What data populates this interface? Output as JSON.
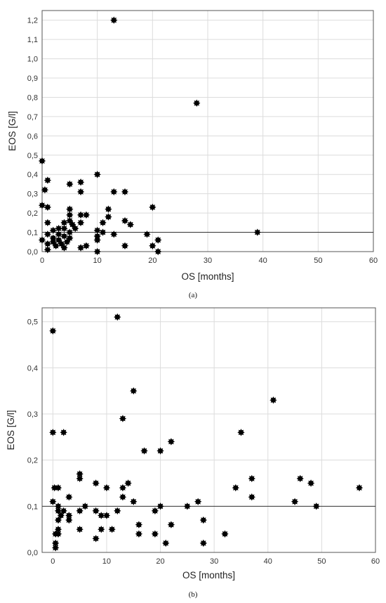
{
  "chart_data": [
    {
      "type": "scatter",
      "panel_label": "(a)",
      "xlabel": "OS [months]",
      "ylabel": "EOS [G/l]",
      "xlim": [
        0,
        60
      ],
      "ylim": [
        0,
        1.25
      ],
      "xticks": [
        0,
        10,
        20,
        30,
        40,
        50,
        60
      ],
      "xtick_labels": [
        "0",
        "10",
        "20",
        "30",
        "40",
        "50",
        "60"
      ],
      "yticks": [
        0.0,
        0.1,
        0.2,
        0.3,
        0.4,
        0.5,
        0.6,
        0.7,
        0.8,
        0.9,
        1.0,
        1.1,
        1.2
      ],
      "ytick_labels": [
        "0,0",
        "0,1",
        "0,2",
        "0,3",
        "0,4",
        "0,5",
        "0,6",
        "0,7",
        "0,8",
        "0,9",
        "1,0",
        "1,1",
        "1,2"
      ],
      "reference_line_y": 0.1,
      "grid": true,
      "marker_color": "#000000",
      "points": [
        [
          0,
          0.47
        ],
        [
          0,
          0.24
        ],
        [
          0,
          0.06
        ],
        [
          0.5,
          0.32
        ],
        [
          1,
          0.37
        ],
        [
          1,
          0.23
        ],
        [
          1,
          0.15
        ],
        [
          1,
          0.09
        ],
        [
          1,
          0.04
        ],
        [
          1,
          0.01
        ],
        [
          2,
          0.11
        ],
        [
          2,
          0.07
        ],
        [
          2,
          0.05
        ],
        [
          2.5,
          0.03
        ],
        [
          3,
          0.12
        ],
        [
          3,
          0.09
        ],
        [
          3,
          0.06
        ],
        [
          3.5,
          0.04
        ],
        [
          4,
          0.15
        ],
        [
          4,
          0.12
        ],
        [
          4,
          0.08
        ],
        [
          4,
          0.02
        ],
        [
          4.5,
          0.05
        ],
        [
          5,
          0.35
        ],
        [
          5,
          0.22
        ],
        [
          5,
          0.19
        ],
        [
          5,
          0.16
        ],
        [
          5,
          0.1
        ],
        [
          5,
          0.07
        ],
        [
          5.5,
          0.14
        ],
        [
          6,
          0.12
        ],
        [
          7,
          0.36
        ],
        [
          7,
          0.31
        ],
        [
          7,
          0.19
        ],
        [
          7,
          0.15
        ],
        [
          7,
          0.02
        ],
        [
          8,
          0.19
        ],
        [
          8,
          0.03
        ],
        [
          10,
          0.4
        ],
        [
          10,
          0.11
        ],
        [
          10,
          0.08
        ],
        [
          10,
          0.06
        ],
        [
          10,
          0.0
        ],
        [
          11,
          0.15
        ],
        [
          11,
          0.1
        ],
        [
          12,
          0.22
        ],
        [
          12,
          0.18
        ],
        [
          13,
          1.2
        ],
        [
          13,
          0.31
        ],
        [
          13,
          0.09
        ],
        [
          15,
          0.31
        ],
        [
          15,
          0.16
        ],
        [
          15,
          0.03
        ],
        [
          16,
          0.14
        ],
        [
          19,
          0.09
        ],
        [
          20,
          0.23
        ],
        [
          20,
          0.03
        ],
        [
          21,
          0.06
        ],
        [
          21,
          0.0
        ],
        [
          28,
          0.77
        ],
        [
          39,
          0.1
        ]
      ]
    },
    {
      "type": "scatter",
      "panel_label": "(b)",
      "xlabel": "OS [months]",
      "ylabel": "EOS [G/l]",
      "xlim": [
        -2,
        60
      ],
      "ylim": [
        0,
        0.53
      ],
      "xticks": [
        0,
        10,
        20,
        30,
        40,
        50,
        60
      ],
      "xtick_labels": [
        "0",
        "10",
        "20",
        "30",
        "40",
        "50",
        "60"
      ],
      "yticks": [
        0.0,
        0.1,
        0.2,
        0.3,
        0.4,
        0.5
      ],
      "ytick_labels": [
        "0,0",
        "0,1",
        "0,2",
        "0,3",
        "0,4",
        "0,5"
      ],
      "reference_line_y": 0.1,
      "grid": true,
      "marker_color": "#000000",
      "points": [
        [
          0,
          0.48
        ],
        [
          0,
          0.26
        ],
        [
          0,
          0.11
        ],
        [
          0.3,
          0.14
        ],
        [
          0.5,
          0.04
        ],
        [
          0.5,
          0.02
        ],
        [
          0.5,
          0.01
        ],
        [
          1,
          0.14
        ],
        [
          1,
          0.1
        ],
        [
          1,
          0.09
        ],
        [
          1,
          0.07
        ],
        [
          1,
          0.05
        ],
        [
          1,
          0.04
        ],
        [
          1.5,
          0.08
        ],
        [
          2,
          0.26
        ],
        [
          2,
          0.09
        ],
        [
          3,
          0.12
        ],
        [
          3,
          0.08
        ],
        [
          3,
          0.07
        ],
        [
          5,
          0.17
        ],
        [
          5,
          0.16
        ],
        [
          5,
          0.09
        ],
        [
          5,
          0.05
        ],
        [
          6,
          0.1
        ],
        [
          8,
          0.15
        ],
        [
          8,
          0.09
        ],
        [
          8,
          0.03
        ],
        [
          9,
          0.08
        ],
        [
          9,
          0.05
        ],
        [
          10,
          0.14
        ],
        [
          10,
          0.08
        ],
        [
          11,
          0.05
        ],
        [
          12,
          0.51
        ],
        [
          12,
          0.09
        ],
        [
          13,
          0.29
        ],
        [
          13,
          0.14
        ],
        [
          13,
          0.12
        ],
        [
          14,
          0.15
        ],
        [
          15,
          0.35
        ],
        [
          15,
          0.11
        ],
        [
          16,
          0.06
        ],
        [
          16,
          0.04
        ],
        [
          17,
          0.22
        ],
        [
          19,
          0.09
        ],
        [
          19,
          0.04
        ],
        [
          20,
          0.22
        ],
        [
          20,
          0.1
        ],
        [
          21,
          0.02
        ],
        [
          22,
          0.24
        ],
        [
          22,
          0.06
        ],
        [
          25,
          0.1
        ],
        [
          27,
          0.11
        ],
        [
          28,
          0.07
        ],
        [
          28,
          0.02
        ],
        [
          32,
          0.04
        ],
        [
          34,
          0.14
        ],
        [
          35,
          0.26
        ],
        [
          37,
          0.16
        ],
        [
          37,
          0.12
        ],
        [
          41,
          0.33
        ],
        [
          45,
          0.11
        ],
        [
          46,
          0.16
        ],
        [
          48,
          0.15
        ],
        [
          49,
          0.1
        ],
        [
          57,
          0.14
        ]
      ]
    }
  ]
}
